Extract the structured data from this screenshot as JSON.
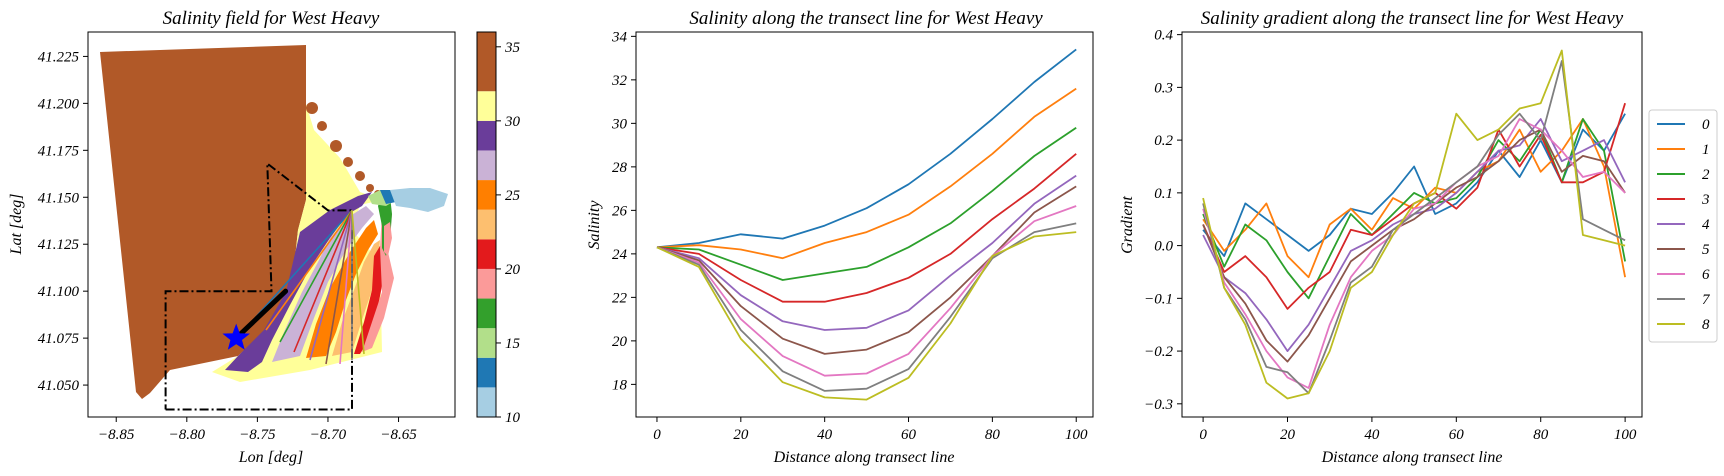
{
  "colors": {
    "series": [
      "#1f77b4",
      "#ff7f0e",
      "#2ca02c",
      "#d62728",
      "#9467bd",
      "#8c564b",
      "#e377c2",
      "#7f7f7f",
      "#bcbd22"
    ],
    "colorbar": [
      "#a6cee3",
      "#1f78b4",
      "#b2df8a",
      "#33a02c",
      "#fb9a99",
      "#e31a1c",
      "#fdbf6f",
      "#ff7f00",
      "#cab2d6",
      "#6a3d9a",
      "#ffff99",
      "#b15928"
    ],
    "marker": "#0000ff"
  },
  "chart_data": [
    {
      "type": "heatmap",
      "title": "Salinity field for West Heavy",
      "xlabel": "Lon [deg]",
      "ylabel": "Lat [deg]",
      "xlim": [
        -8.87,
        -8.61
      ],
      "ylim": [
        41.033,
        41.238
      ],
      "xticks": [
        "−8.85",
        "−8.80",
        "−8.75",
        "−8.70",
        "−8.65"
      ],
      "yticks": [
        "41.050",
        "41.075",
        "41.100",
        "41.125",
        "41.150",
        "41.175",
        "41.200",
        "41.225"
      ],
      "colorbar": {
        "range": [
          10,
          36
        ],
        "ticks": [
          "10",
          "15",
          "20",
          "25",
          "30",
          "35"
        ]
      },
      "marker": {
        "shape": "star",
        "lon": -8.765,
        "lat": 41.075
      },
      "transect": {
        "lon": [
          -8.765,
          -8.73
        ],
        "lat": [
          41.075,
          41.1
        ]
      },
      "boundary_box": {
        "lon": [
          -8.815,
          -8.683,
          -8.683,
          -8.7,
          -8.743,
          -8.74,
          -8.815,
          -8.815
        ],
        "lat": [
          41.037,
          41.037,
          41.143,
          41.143,
          41.168,
          41.1,
          41.1,
          41.037
        ]
      }
    },
    {
      "type": "line",
      "title": "Salinity along the transect line for West Heavy",
      "xlabel": "Distance along transect line",
      "ylabel": "Salinity",
      "xlim": [
        -5,
        104
      ],
      "ylim": [
        16.5,
        34.2
      ],
      "xticks": [
        "0",
        "20",
        "40",
        "60",
        "80",
        "100"
      ],
      "yticks": [
        "18",
        "20",
        "22",
        "24",
        "26",
        "28",
        "30",
        "32",
        "34"
      ],
      "x": [
        0,
        10,
        20,
        30,
        40,
        50,
        60,
        70,
        80,
        90,
        100
      ],
      "series": [
        {
          "name": "0",
          "values": [
            24.3,
            24.5,
            24.9,
            24.7,
            25.3,
            26.1,
            27.2,
            28.6,
            30.2,
            31.9,
            33.4
          ]
        },
        {
          "name": "1",
          "values": [
            24.3,
            24.4,
            24.2,
            23.8,
            24.5,
            25.0,
            25.8,
            27.1,
            28.6,
            30.3,
            31.6
          ]
        },
        {
          "name": "2",
          "values": [
            24.3,
            24.2,
            23.5,
            22.8,
            23.1,
            23.4,
            24.3,
            25.4,
            26.9,
            28.5,
            29.8
          ]
        },
        {
          "name": "3",
          "values": [
            24.3,
            24.0,
            22.8,
            21.8,
            21.8,
            22.2,
            22.9,
            24.0,
            25.6,
            27.0,
            28.6
          ]
        },
        {
          "name": "4",
          "values": [
            24.3,
            23.8,
            22.1,
            20.9,
            20.5,
            20.6,
            21.4,
            23.0,
            24.5,
            26.3,
            27.6
          ]
        },
        {
          "name": "5",
          "values": [
            24.3,
            23.7,
            21.6,
            20.1,
            19.4,
            19.6,
            20.4,
            22.0,
            23.9,
            25.9,
            27.1
          ]
        },
        {
          "name": "6",
          "values": [
            24.3,
            23.6,
            21.0,
            19.3,
            18.4,
            18.5,
            19.4,
            21.5,
            23.9,
            25.5,
            26.2
          ]
        },
        {
          "name": "7",
          "values": [
            24.3,
            23.5,
            20.5,
            18.6,
            17.7,
            17.8,
            18.7,
            21.1,
            23.8,
            25.0,
            25.4
          ]
        },
        {
          "name": "8",
          "values": [
            24.3,
            23.4,
            20.1,
            18.1,
            17.4,
            17.3,
            18.3,
            20.8,
            23.9,
            24.8,
            25.0
          ]
        }
      ]
    },
    {
      "type": "line",
      "title": "Salinity gradient along the transect line for West Heavy",
      "xlabel": "Distance along transect line",
      "ylabel": "Gradient",
      "xlim": [
        -5,
        104
      ],
      "ylim": [
        -0.325,
        0.405
      ],
      "xticks": [
        "0",
        "20",
        "40",
        "60",
        "80",
        "100"
      ],
      "yticks": [
        "−0.3",
        "−0.2",
        "−0.1",
        "0.0",
        "0.1",
        "0.2",
        "0.3",
        "0.4"
      ],
      "x": [
        0,
        5,
        10,
        15,
        20,
        25,
        30,
        35,
        40,
        45,
        50,
        55,
        60,
        65,
        70,
        75,
        80,
        85,
        90,
        95,
        100
      ],
      "series": [
        {
          "name": "0",
          "values": [
            0.03,
            -0.02,
            0.08,
            0.05,
            0.02,
            -0.01,
            0.02,
            0.07,
            0.06,
            0.1,
            0.15,
            0.06,
            0.08,
            0.12,
            0.18,
            0.13,
            0.2,
            0.12,
            0.22,
            0.18,
            0.25
          ]
        },
        {
          "name": "1",
          "values": [
            0.05,
            -0.01,
            0.03,
            0.08,
            -0.02,
            -0.06,
            0.04,
            0.07,
            0.03,
            0.09,
            0.07,
            0.11,
            0.1,
            0.14,
            0.16,
            0.22,
            0.14,
            0.18,
            0.24,
            0.15,
            -0.06
          ]
        },
        {
          "name": "2",
          "values": [
            0.06,
            -0.04,
            0.04,
            0.01,
            -0.05,
            -0.1,
            -0.02,
            0.06,
            0.02,
            0.06,
            0.1,
            0.08,
            0.09,
            0.13,
            0.2,
            0.16,
            0.22,
            0.12,
            0.24,
            0.18,
            -0.03
          ]
        },
        {
          "name": "3",
          "values": [
            0.04,
            -0.05,
            -0.02,
            -0.06,
            -0.12,
            -0.08,
            -0.05,
            0.03,
            0.02,
            0.05,
            0.08,
            0.1,
            0.07,
            0.11,
            0.22,
            0.15,
            0.21,
            0.12,
            0.12,
            0.14,
            0.27
          ]
        },
        {
          "name": "4",
          "values": [
            0.02,
            -0.06,
            -0.09,
            -0.14,
            -0.2,
            -0.15,
            -0.08,
            -0.01,
            0.01,
            0.04,
            0.06,
            0.07,
            0.1,
            0.14,
            0.18,
            0.19,
            0.24,
            0.16,
            0.18,
            0.2,
            0.12
          ]
        },
        {
          "name": "5",
          "values": [
            0.04,
            -0.06,
            -0.11,
            -0.18,
            -0.22,
            -0.17,
            -0.1,
            -0.03,
            0.0,
            0.03,
            0.05,
            0.08,
            0.11,
            0.13,
            0.16,
            0.2,
            0.22,
            0.14,
            0.17,
            0.16,
            0.1
          ]
        },
        {
          "name": "6",
          "values": [
            0.07,
            -0.07,
            -0.13,
            -0.2,
            -0.25,
            -0.27,
            -0.15,
            -0.06,
            -0.01,
            0.02,
            0.07,
            0.08,
            0.12,
            0.15,
            0.17,
            0.24,
            0.22,
            0.18,
            0.13,
            0.14,
            0.1
          ]
        },
        {
          "name": "7",
          "values": [
            0.08,
            -0.08,
            -0.14,
            -0.23,
            -0.24,
            -0.28,
            -0.18,
            -0.07,
            -0.04,
            0.03,
            0.06,
            0.09,
            0.12,
            0.15,
            0.21,
            0.25,
            0.2,
            0.35,
            0.05,
            0.03,
            0.01
          ]
        },
        {
          "name": "8",
          "values": [
            0.09,
            -0.08,
            -0.15,
            -0.26,
            -0.29,
            -0.28,
            -0.2,
            -0.08,
            -0.05,
            0.02,
            0.08,
            0.1,
            0.25,
            0.2,
            0.22,
            0.26,
            0.27,
            0.37,
            0.02,
            0.01,
            0.0
          ]
        }
      ]
    }
  ]
}
